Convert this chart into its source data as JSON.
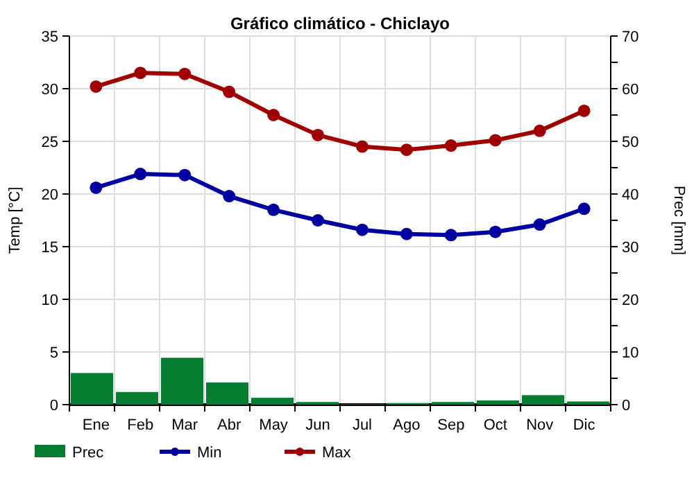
{
  "chart_data": {
    "type": "bar",
    "title": "Gráfico climático - Chiclayo",
    "ylabel": "Temp [°C]",
    "y2label": "Prec [mm]",
    "categories": [
      "Ene",
      "Feb",
      "Mar",
      "Abr",
      "May",
      "Jun",
      "Jul",
      "Ago",
      "Sep",
      "Oct",
      "Nov",
      "Dic"
    ],
    "series": [
      {
        "name": "Prec",
        "axis": "y2",
        "color": "#047d31",
        "values": [
          6.0,
          2.4,
          8.9,
          4.2,
          1.3,
          0.5,
          0.1,
          0.3,
          0.5,
          0.8,
          1.8,
          0.6
        ]
      },
      {
        "name": "Min",
        "type": "line",
        "color": "#0000a0",
        "marker": "circle",
        "values": [
          20.6,
          21.9,
          21.8,
          19.8,
          18.5,
          17.5,
          16.6,
          16.2,
          16.1,
          16.4,
          17.1,
          18.6
        ]
      },
      {
        "name": "Max",
        "type": "line",
        "color": "#a00000",
        "marker": "circle",
        "values": [
          30.2,
          31.5,
          31.4,
          29.7,
          27.5,
          25.6,
          24.5,
          24.2,
          24.6,
          25.1,
          26.0,
          27.9
        ]
      }
    ],
    "ylim": [
      0,
      35
    ],
    "yticks": [
      0,
      5,
      10,
      15,
      20,
      25,
      30,
      35
    ],
    "y2lim": [
      0,
      70
    ],
    "y2ticks": [
      0,
      {
        "value": 5,
        "label": null
      },
      10,
      {
        "value": 15,
        "label": null
      },
      20,
      {
        "value": 25,
        "label": null
      },
      30,
      {
        "value": 35,
        "label": null
      },
      40,
      {
        "value": 45,
        "label": null
      },
      50,
      {
        "value": 55,
        "label": null
      },
      60,
      {
        "value": 65,
        "label": null
      },
      70
    ],
    "grid": true,
    "legend": "bottom"
  }
}
